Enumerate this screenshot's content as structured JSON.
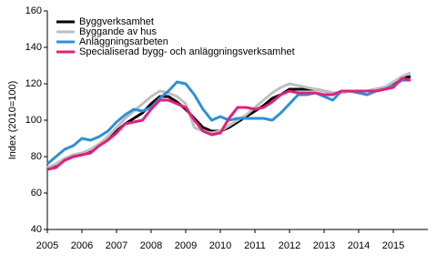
{
  "chart_data": {
    "type": "line",
    "y_label": "Index (2010=100)",
    "x": [
      2005,
      2005.25,
      2005.5,
      2005.75,
      2006,
      2006.25,
      2006.5,
      2006.75,
      2007,
      2007.25,
      2007.5,
      2007.75,
      2008,
      2008.25,
      2008.5,
      2008.75,
      2009,
      2009.25,
      2009.5,
      2009.75,
      2010,
      2010.25,
      2010.5,
      2010.75,
      2011,
      2011.25,
      2011.5,
      2011.75,
      2012,
      2012.25,
      2012.5,
      2012.75,
      2013,
      2013.25,
      2013.5,
      2013.75,
      2014,
      2014.25,
      2014.5,
      2014.75,
      2015,
      2015.25,
      2015.5
    ],
    "series": [
      {
        "name": "Byggverksamhet",
        "color": "#000000",
        "values": [
          73,
          75,
          78,
          80,
          81,
          83,
          86,
          90,
          94,
          98,
          101,
          104,
          109,
          113,
          113,
          110,
          106,
          101,
          96,
          94,
          94,
          96,
          99,
          102,
          105,
          108,
          112,
          114,
          117,
          117,
          117,
          117,
          116,
          115,
          115,
          116,
          116,
          116,
          117,
          118,
          120,
          123,
          124
        ]
      },
      {
        "name": "Byggande av hus",
        "color": "#bfbfbf",
        "values": [
          74,
          76,
          79,
          81,
          82,
          84,
          87,
          91,
          96,
          101,
          105,
          109,
          113,
          116,
          115,
          113,
          109,
          96,
          94,
          93,
          94,
          97,
          100,
          103,
          107,
          111,
          115,
          118,
          120,
          119,
          118,
          117,
          116,
          115,
          115,
          116,
          116,
          116,
          117,
          118,
          121,
          124,
          126
        ]
      },
      {
        "name": "Anläggningsarbeten",
        "color": "#2e8fd6",
        "values": [
          76,
          80,
          84,
          86,
          90,
          89,
          91,
          94,
          99,
          103,
          106,
          105,
          107,
          112,
          116,
          121,
          120,
          114,
          106,
          100,
          102,
          100,
          101,
          101,
          101,
          101,
          100,
          104,
          109,
          114,
          114,
          115,
          113,
          111,
          116,
          116,
          115,
          114,
          116,
          117,
          119,
          122,
          122
        ]
      },
      {
        "name": "Specialiserad bygg- och anläggningsverksamhet",
        "color": "#e0207d",
        "values": [
          73,
          74,
          78,
          80,
          81,
          82,
          86,
          89,
          93,
          98,
          99,
          100,
          106,
          111,
          111,
          109,
          107,
          100,
          94,
          92,
          93,
          101,
          107,
          107,
          106,
          107,
          110,
          114,
          116,
          115,
          115,
          115,
          114,
          114,
          116,
          116,
          116,
          116,
          116,
          117,
          118,
          123,
          122
        ]
      }
    ],
    "xlim": [
      2005,
      2016
    ],
    "xticks": [
      2005,
      2006,
      2007,
      2008,
      2009,
      2010,
      2011,
      2012,
      2013,
      2014,
      2015
    ],
    "ylim": [
      40,
      160
    ],
    "yticks": [
      40,
      60,
      80,
      100,
      120,
      140,
      160
    ],
    "grid": false,
    "legend": "top-left"
  }
}
